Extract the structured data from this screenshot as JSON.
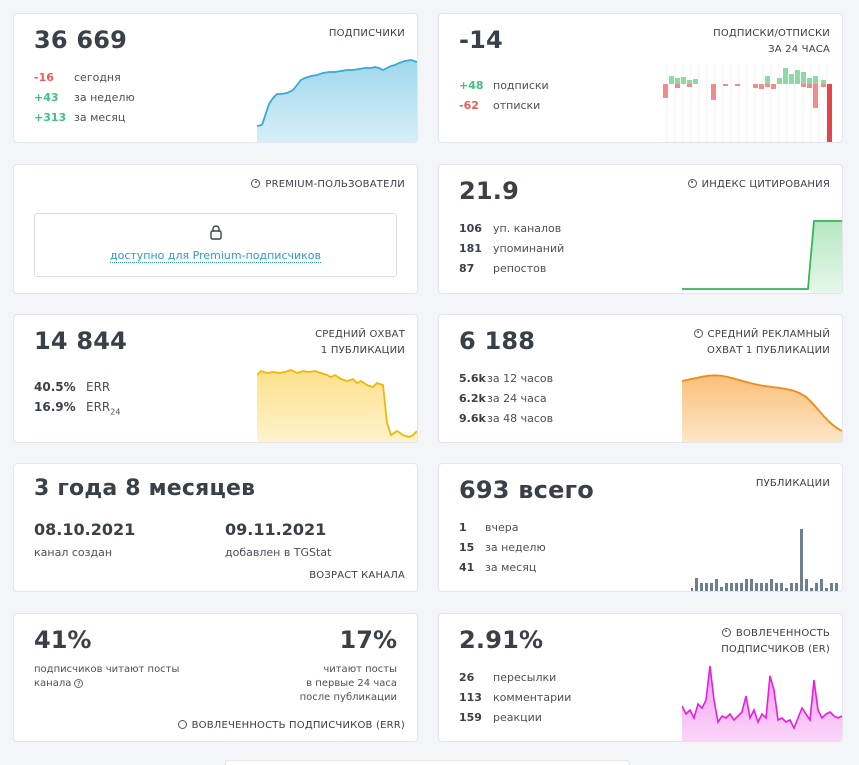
{
  "subscribers": {
    "value": "36 669",
    "label": "ПОДПИСЧИКИ",
    "rows": [
      {
        "value": "-16",
        "text": "сегодня"
      },
      {
        "value": "+43",
        "text": "за неделю"
      },
      {
        "value": "+313",
        "text": "за месяц"
      }
    ]
  },
  "subs_unsubs": {
    "value": "-14",
    "label_line1": "ПОДПИСКИ/ОТПИСКИ",
    "label_line2": "ЗА 24 ЧАСА",
    "rows": [
      {
        "value": "+48",
        "text": "подписки"
      },
      {
        "value": "-62",
        "text": "отписки"
      }
    ]
  },
  "premium": {
    "label": "PREMIUM-ПОЛЬЗОВАТЕЛИ",
    "link": "доступно для Premium-подписчиков"
  },
  "citation": {
    "value": "21.9",
    "label": "ИНДЕКС ЦИТИРОВАНИЯ",
    "rows": [
      {
        "value": "106",
        "text": "уп. каналов"
      },
      {
        "value": "181",
        "text": "упоминаний"
      },
      {
        "value": "87",
        "text": "репостов"
      }
    ]
  },
  "avg_reach": {
    "value": "14 844",
    "label_line1": "СРЕДНИЙ ОХВАТ",
    "label_line2": "1 ПУБЛИКАЦИИ",
    "rows": [
      {
        "value": "40.5%",
        "text": "ERR"
      },
      {
        "value": "16.9%",
        "text": "ERR",
        "sub": "24"
      }
    ]
  },
  "ad_reach": {
    "value": "6 188",
    "label_line1": "СРЕДНИЙ РЕКЛАМНЫЙ",
    "label_line2": "ОХВАТ 1 ПУБЛИКАЦИИ",
    "rows": [
      {
        "value": "5.6k",
        "text": "за 12 часов"
      },
      {
        "value": "6.2k",
        "text": "за 24 часа"
      },
      {
        "value": "9.6k",
        "text": "за 48 часов"
      }
    ]
  },
  "age": {
    "value": "3 года 8 месяцев",
    "created_date": "08.10.2021",
    "created_label": "канал создан",
    "added_date": "09.11.2021",
    "added_label": "добавлен в TGStat",
    "label": "ВОЗРАСТ КАНАЛА"
  },
  "publications": {
    "value": "693 всего",
    "label": "ПУБЛИКАЦИИ",
    "rows": [
      {
        "value": "1",
        "text": "вчера"
      },
      {
        "value": "15",
        "text": "за неделю"
      },
      {
        "value": "41",
        "text": "за месяц"
      }
    ]
  },
  "err": {
    "left_value": "41%",
    "left_text_line1": "подписчиков читают посты",
    "left_text_line2": "канала",
    "help_icon": "?",
    "right_value": "17%",
    "right_text_line1": "читают посты",
    "right_text_line2": "в первые 24 часа",
    "right_text_line3": "после публикации",
    "label": "ВОВЛЕЧЕННОСТЬ ПОДПИСЧИКОВ (ERR)"
  },
  "er": {
    "value": "2.91%",
    "label_line1": "ВОВЛЕЧЕННОСТЬ",
    "label_line2": "ПОДПИСЧИКОВ (ER)",
    "rows": [
      {
        "value": "26",
        "text": "пересылки"
      },
      {
        "value": "113",
        "text": "комментарии"
      },
      {
        "value": "159",
        "text": "реакции"
      }
    ]
  },
  "colors": {
    "positive": "#3ec280",
    "negative": "#ed5b55",
    "subscribers_line": "#3aa8d8",
    "reach_line": "#f2b705",
    "ad_reach_line": "#f28a1a",
    "citation_line": "#2eb84f",
    "publications_bar": "#6d7f92",
    "er_line": "#e61ee0"
  }
}
